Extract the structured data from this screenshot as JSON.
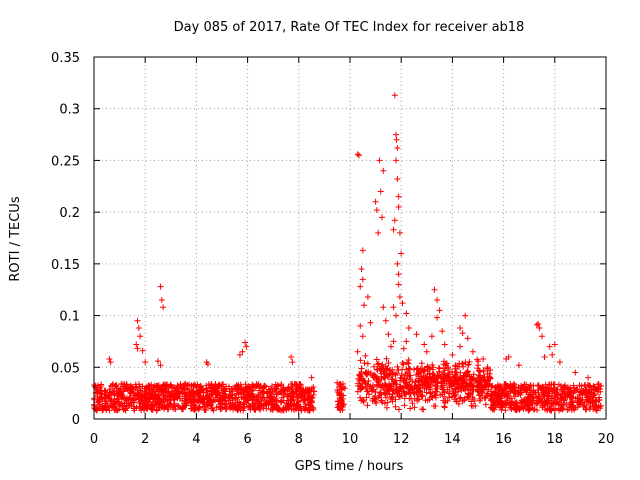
{
  "chart_data": {
    "type": "scatter",
    "title": "Day 085 of 2017, Rate Of TEC Index for receiver ab18",
    "xlabel": "GPS time / hours",
    "ylabel": "ROTI / TECUs",
    "xlim": [
      0,
      20
    ],
    "ylim": [
      0,
      0.35
    ],
    "x_ticks": [
      0,
      2,
      4,
      6,
      8,
      10,
      12,
      14,
      16,
      18,
      20
    ],
    "x_tick_labels": [
      "0",
      "2",
      "4",
      "6",
      "8",
      "10",
      "12",
      "14",
      "16",
      "18",
      "20"
    ],
    "y_ticks": [
      0,
      0.05,
      0.1,
      0.15,
      0.2,
      0.25,
      0.3,
      0.35
    ],
    "y_tick_labels": [
      "0",
      "0.05",
      "0.1",
      "0.15",
      "0.2",
      "0.25",
      "0.3",
      "0.35"
    ],
    "grid": true,
    "marker": "+",
    "marker_color": "#ff0000",
    "data_gaps_hours": [
      [
        8.6,
        9.5
      ],
      [
        9.8,
        10.3
      ]
    ],
    "series": [
      {
        "name": "ROTI",
        "points": [
          [
            0.05,
            0.031
          ],
          [
            0.1,
            0.028
          ],
          [
            0.6,
            0.058
          ],
          [
            0.65,
            0.055
          ],
          [
            1.7,
            0.095
          ],
          [
            1.75,
            0.088
          ],
          [
            1.8,
            0.08
          ],
          [
            1.65,
            0.072
          ],
          [
            1.7,
            0.068
          ],
          [
            1.9,
            0.066
          ],
          [
            2.0,
            0.055
          ],
          [
            2.6,
            0.128
          ],
          [
            2.65,
            0.115
          ],
          [
            2.7,
            0.108
          ],
          [
            2.5,
            0.056
          ],
          [
            2.6,
            0.052
          ],
          [
            4.4,
            0.055
          ],
          [
            4.45,
            0.053
          ],
          [
            5.7,
            0.062
          ],
          [
            5.8,
            0.065
          ],
          [
            5.9,
            0.074
          ],
          [
            5.95,
            0.07
          ],
          [
            7.7,
            0.06
          ],
          [
            7.75,
            0.055
          ],
          [
            8.5,
            0.04
          ],
          [
            9.5,
            0.035
          ],
          [
            9.5,
            0.028
          ],
          [
            10.3,
            0.256
          ],
          [
            10.35,
            0.255
          ],
          [
            10.5,
            0.163
          ],
          [
            10.45,
            0.145
          ],
          [
            10.5,
            0.135
          ],
          [
            10.4,
            0.128
          ],
          [
            10.55,
            0.11
          ],
          [
            10.4,
            0.09
          ],
          [
            10.5,
            0.08
          ],
          [
            10.3,
            0.065
          ],
          [
            10.6,
            0.061
          ],
          [
            10.7,
            0.118
          ],
          [
            10.8,
            0.093
          ],
          [
            11.0,
            0.21
          ],
          [
            11.05,
            0.202
          ],
          [
            11.1,
            0.18
          ],
          [
            11.15,
            0.25
          ],
          [
            11.2,
            0.22
          ],
          [
            11.3,
            0.24
          ],
          [
            11.25,
            0.195
          ],
          [
            11.3,
            0.108
          ],
          [
            11.4,
            0.095
          ],
          [
            11.5,
            0.082
          ],
          [
            11.6,
            0.07
          ],
          [
            11.7,
            0.075
          ],
          [
            11.75,
            0.313
          ],
          [
            11.8,
            0.275
          ],
          [
            11.82,
            0.27
          ],
          [
            11.85,
            0.262
          ],
          [
            11.8,
            0.25
          ],
          [
            11.85,
            0.232
          ],
          [
            11.9,
            0.215
          ],
          [
            11.9,
            0.205
          ],
          [
            11.95,
            0.18
          ],
          [
            12.0,
            0.16
          ],
          [
            11.85,
            0.15
          ],
          [
            11.9,
            0.13
          ],
          [
            11.95,
            0.118
          ],
          [
            12.05,
            0.112
          ],
          [
            11.7,
            0.108
          ],
          [
            11.8,
            0.1
          ],
          [
            12.2,
            0.102
          ],
          [
            12.3,
            0.088
          ],
          [
            12.2,
            0.075
          ],
          [
            12.1,
            0.068
          ],
          [
            11.75,
            0.192
          ],
          [
            11.7,
            0.183
          ],
          [
            11.9,
            0.14
          ],
          [
            12.6,
            0.082
          ],
          [
            12.9,
            0.072
          ],
          [
            13.0,
            0.065
          ],
          [
            13.3,
            0.125
          ],
          [
            13.4,
            0.115
          ],
          [
            13.5,
            0.105
          ],
          [
            13.4,
            0.098
          ],
          [
            13.6,
            0.085
          ],
          [
            13.2,
            0.08
          ],
          [
            13.7,
            0.072
          ],
          [
            14.0,
            0.062
          ],
          [
            14.3,
            0.088
          ],
          [
            14.4,
            0.083
          ],
          [
            14.5,
            0.1
          ],
          [
            14.6,
            0.078
          ],
          [
            14.3,
            0.07
          ],
          [
            14.8,
            0.065
          ],
          [
            15.0,
            0.052
          ],
          [
            15.2,
            0.058
          ],
          [
            16.1,
            0.058
          ],
          [
            16.2,
            0.06
          ],
          [
            16.6,
            0.052
          ],
          [
            17.3,
            0.091
          ],
          [
            17.35,
            0.092
          ],
          [
            17.4,
            0.088
          ],
          [
            17.5,
            0.08
          ],
          [
            17.6,
            0.06
          ],
          [
            17.8,
            0.07
          ],
          [
            17.9,
            0.062
          ],
          [
            18.0,
            0.072
          ],
          [
            18.2,
            0.055
          ],
          [
            18.8,
            0.045
          ],
          [
            19.3,
            0.04
          ],
          [
            19.8,
            0.032
          ]
        ]
      }
    ]
  }
}
